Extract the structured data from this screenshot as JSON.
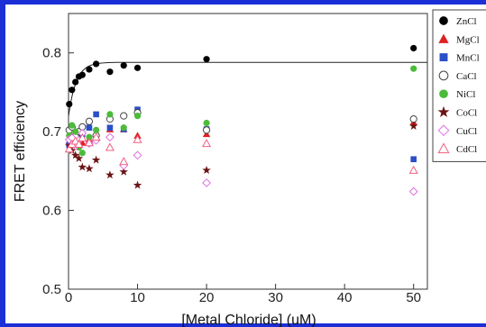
{
  "colors": {
    "frame": "#1a2fd6",
    "axis": "#333333",
    "ZnCl2": "#000000",
    "MgCl2": "#e02020",
    "MnCl2": "#2b4fc9",
    "CaCl2": "#444444",
    "NiCl2": "#4cbb3a",
    "CoCl2": "#6b1414",
    "CuCl2": "#e070e0",
    "CdCl2": "#f06080"
  },
  "chart_data": {
    "type": "scatter",
    "title": "",
    "xlabel": "[Metal Chloride] (uM)",
    "ylabel": "FRET efficiency",
    "xlim": [
      0,
      52
    ],
    "ylim": [
      0.5,
      0.85
    ],
    "xticks": [
      0,
      10,
      20,
      30,
      40,
      50
    ],
    "yticks": [
      0.5,
      0.6,
      0.7,
      0.8
    ],
    "xtick_labels": [
      "0",
      "10",
      "20",
      "30",
      "40",
      "50"
    ],
    "ytick_labels": [
      "0.5",
      "0.6",
      "0.7",
      "0.8"
    ],
    "grid": false,
    "legend_position": "top-right",
    "series": [
      {
        "name": "ZnCl2",
        "legend_label": "ZnCl",
        "marker": "filled-circle",
        "x": [
          0.1,
          0.5,
          1,
          1.5,
          2,
          3,
          4,
          6,
          8,
          10,
          20,
          50
        ],
        "y": [
          0.735,
          0.753,
          0.763,
          0.77,
          0.772,
          0.779,
          0.786,
          0.776,
          0.784,
          0.781,
          0.792,
          0.806
        ]
      },
      {
        "name": "MgCl2",
        "legend_label": "MgCl",
        "marker": "filled-triangle",
        "x": [
          0.1,
          0.5,
          1,
          1.5,
          2,
          3,
          4,
          6,
          8,
          10,
          20,
          50
        ],
        "y": [
          0.688,
          0.694,
          0.692,
          0.688,
          0.686,
          0.69,
          0.694,
          0.703,
          0.703,
          0.695,
          0.697,
          0.712
        ]
      },
      {
        "name": "MnCl2",
        "legend_label": "MnCl",
        "marker": "filled-square",
        "x": [
          0.1,
          0.5,
          1,
          1.5,
          2,
          3,
          4,
          6,
          8,
          10,
          20,
          50
        ],
        "y": [
          0.683,
          0.688,
          0.689,
          0.694,
          0.697,
          0.705,
          0.722,
          0.705,
          0.703,
          0.728,
          0.703,
          0.665
        ]
      },
      {
        "name": "CaCl2",
        "legend_label": "CaCl",
        "marker": "open-circle",
        "x": [
          0.1,
          0.5,
          1,
          1.5,
          2,
          3,
          4,
          6,
          8,
          10,
          20,
          50
        ],
        "y": [
          0.702,
          0.706,
          0.694,
          0.7,
          0.706,
          0.713,
          0.695,
          0.716,
          0.72,
          0.724,
          0.702,
          0.716
        ]
      },
      {
        "name": "NiCl2",
        "legend_label": "NiCl",
        "marker": "filled-circle",
        "x": [
          0.1,
          0.5,
          1,
          1.5,
          2,
          3,
          4,
          6,
          8,
          10,
          20,
          50
        ],
        "y": [
          0.695,
          0.708,
          0.7,
          0.68,
          0.673,
          0.693,
          0.702,
          0.722,
          0.705,
          0.72,
          0.711,
          0.78
        ]
      },
      {
        "name": "CoCl2",
        "legend_label": "CoCl",
        "marker": "filled-star",
        "x": [
          0.1,
          0.5,
          1,
          1.5,
          2,
          3,
          4,
          6,
          8,
          10,
          20,
          50
        ],
        "y": [
          0.682,
          0.676,
          0.67,
          0.666,
          0.655,
          0.653,
          0.664,
          0.645,
          0.649,
          0.632,
          0.651,
          0.707
        ]
      },
      {
        "name": "CuCl2",
        "legend_label": "CuCl",
        "marker": "open-diamond",
        "x": [
          0.1,
          0.5,
          1,
          1.5,
          2,
          3,
          4,
          6,
          8,
          10,
          20,
          50
        ],
        "y": [
          0.69,
          0.692,
          0.682,
          0.689,
          0.698,
          0.685,
          0.689,
          0.693,
          0.657,
          0.67,
          0.635,
          0.624
        ]
      },
      {
        "name": "CdCl2",
        "legend_label": "CdCl",
        "marker": "open-triangle",
        "x": [
          0.1,
          0.5,
          1,
          1.5,
          2,
          3,
          4,
          6,
          8,
          10,
          20,
          50
        ],
        "y": [
          0.678,
          0.684,
          0.688,
          0.684,
          0.692,
          0.686,
          0.693,
          0.68,
          0.662,
          0.69,
          0.685,
          0.651
        ]
      }
    ],
    "fit_curve": {
      "series": "ZnCl2",
      "plateau": 0.788,
      "y0": 0.72,
      "k": 0.9
    }
  }
}
